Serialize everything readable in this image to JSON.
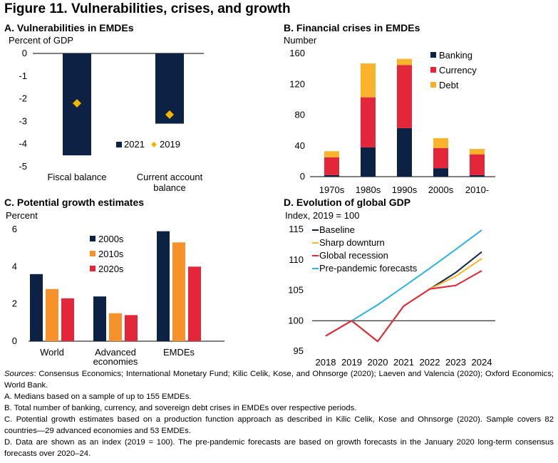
{
  "figure_title": "Figure 11. Vulnerabilities, crises, and growth",
  "colors": {
    "navy": "#0b2244",
    "red": "#e3263a",
    "orange": "#f7912a",
    "yellow": "#fbb32b",
    "sky": "#2bb3e0",
    "diamond": "#f5b400"
  },
  "chart_data": [
    {
      "id": "A",
      "type": "bar",
      "title": "A. Vulnerabilities in EMDEs",
      "ylabel": "Percent of GDP",
      "ylim": [
        -5,
        0
      ],
      "yticks": [
        0,
        -1,
        -2,
        -3,
        -4,
        -5
      ],
      "categories": [
        "Fiscal balance",
        "Current account balance"
      ],
      "category_lines": [
        [
          "Fiscal balance"
        ],
        [
          "Current account",
          "balance"
        ]
      ],
      "series": [
        {
          "name": "2021",
          "mark": "bar",
          "values": [
            -4.5,
            -3.1
          ]
        },
        {
          "name": "2019",
          "mark": "diamond",
          "values": [
            -2.2,
            -2.7
          ]
        }
      ],
      "legend": "inside-bottom"
    },
    {
      "id": "B",
      "type": "bar",
      "stacked": true,
      "title": "B. Financial crises in EMDEs",
      "ylabel": "Number",
      "ylim": [
        0,
        160
      ],
      "yticks": [
        0,
        40,
        80,
        120,
        160
      ],
      "categories": [
        "1970s",
        "1980s",
        "1990s",
        "2000s",
        "2010-"
      ],
      "series": [
        {
          "name": "Banking",
          "values": [
            2,
            38,
            63,
            11,
            2
          ]
        },
        {
          "name": "Currency",
          "values": [
            23,
            65,
            82,
            26,
            27
          ]
        },
        {
          "name": "Debt",
          "values": [
            8,
            44,
            8,
            13,
            7
          ]
        }
      ],
      "legend": "top-right"
    },
    {
      "id": "C",
      "type": "bar",
      "title": "C. Potential growth estimates",
      "ylabel": "Percent",
      "ylim": [
        0,
        6
      ],
      "yticks": [
        0,
        2,
        4,
        6
      ],
      "categories": [
        "World",
        "Advanced economies",
        "EMDEs"
      ],
      "category_lines": [
        [
          "World"
        ],
        [
          "Advanced",
          "economies"
        ],
        [
          "EMDEs"
        ]
      ],
      "series": [
        {
          "name": "2000s",
          "values": [
            3.6,
            2.4,
            5.9
          ]
        },
        {
          "name": "2010s",
          "values": [
            2.8,
            1.5,
            5.3
          ]
        },
        {
          "name": "2020s",
          "values": [
            2.3,
            1.4,
            4.0
          ]
        }
      ],
      "legend": "top-left"
    },
    {
      "id": "D",
      "type": "line",
      "title": "D. Evolution of global GDP",
      "ylabel": "Index, 2019 = 100",
      "ylim": [
        95,
        115
      ],
      "yticks": [
        95,
        100,
        105,
        110,
        115
      ],
      "x": [
        2018,
        2019,
        2020,
        2021,
        2022,
        2023,
        2024
      ],
      "reference_line": 100,
      "series": [
        {
          "name": "Baseline",
          "values": [
            97.5,
            100,
            96.6,
            102.4,
            105.2,
            107.9,
            111.3
          ]
        },
        {
          "name": "Sharp downturn",
          "values": [
            97.5,
            100,
            96.6,
            102.4,
            105.2,
            107.3,
            110.2
          ]
        },
        {
          "name": "Global recession",
          "values": [
            97.5,
            100,
            96.6,
            102.4,
            105.2,
            105.8,
            108.2
          ]
        },
        {
          "name": "Pre-pandemic forecasts",
          "values": [
            null,
            100,
            102.6,
            105.6,
            108.6,
            111.7,
            114.9
          ]
        }
      ],
      "legend": "top-left"
    }
  ],
  "notes": {
    "sources_label": "Sources",
    "sources_text": ": Consensus Economics; International Monetary Fund; Kilic Celik, Kose, and Ohnsorge (2020); Laeven and Valencia (2020); Oxford Economics; World Bank.",
    "a": "A. Medians based on a sample of up to 155 EMDEs.",
    "b": "B. Total number of banking, currency, and sovereign debt crises in EMDEs over respective periods.",
    "c": "C. Potential growth estimates based on a production function approach as described in Kilic Celik, Kose and Ohnsorge (2020). Sample covers 82 countries—29 advanced economies and 53 EMDEs.",
    "d": "D. Data are shown as an index (2019 = 100). The pre-pandemic forecasts are based on growth forecasts in the January 2020 long-term consensus forecasts over 2020–24."
  }
}
